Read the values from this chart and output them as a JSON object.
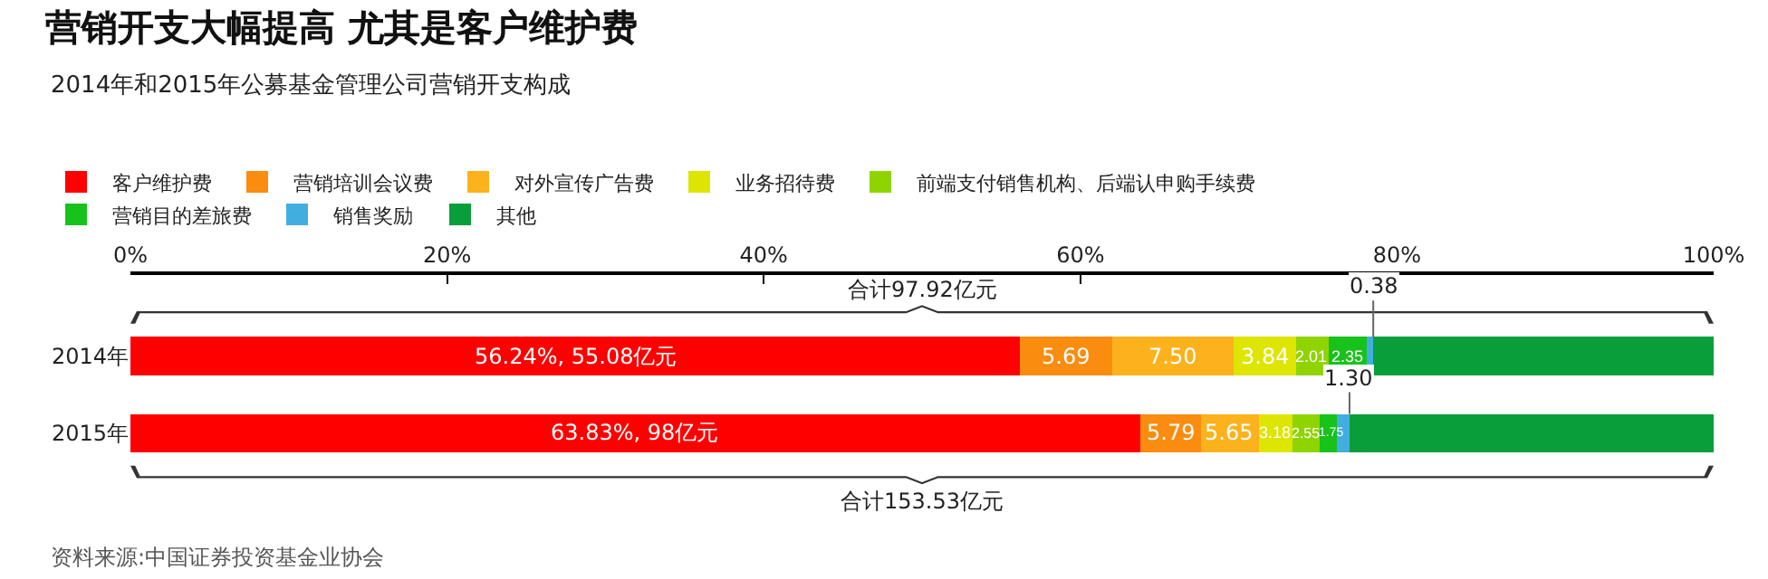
{
  "chart_data": {
    "type": "bar",
    "orientation": "horizontal",
    "stacked": true,
    "title": "营销开支大幅提高 尤其是客户维护费",
    "subtitle": "2014年和2015年公募基金管理公司营销开支构成",
    "categories": [
      "2014年",
      "2015年"
    ],
    "series": [
      {
        "name": "客户维护费",
        "color": "#ff0000",
        "values": [
          56.2,
          63.8
        ]
      },
      {
        "name": "营销培训会议费",
        "color": "#fa8c0f",
        "values": [
          5.8,
          3.8
        ]
      },
      {
        "name": "对外宣传广告费",
        "color": "#fbb21c",
        "values": [
          7.7,
          3.7
        ]
      },
      {
        "name": "业务招待费",
        "color": "#dde500",
        "values": [
          3.9,
          2.1
        ]
      },
      {
        "name": "前端支付销售机构、后端认申购手续费",
        "color": "#8fd400",
        "values": [
          2.1,
          1.7
        ]
      },
      {
        "name": "营销目的差旅费",
        "color": "#17c21b",
        "values": [
          2.4,
          1.1
        ]
      },
      {
        "name": "销售奖励",
        "color": "#42aee0",
        "values": [
          0.4,
          0.8
        ]
      },
      {
        "name": "其他",
        "color": "#0a9e3a",
        "values": [
          21.5,
          23.0
        ]
      }
    ],
    "xlim": [
      0,
      100
    ],
    "xticks": [
      {
        "value": 0,
        "label": "0%"
      },
      {
        "value": 20,
        "label": "20%"
      },
      {
        "value": 40,
        "label": "40%"
      },
      {
        "value": 60,
        "label": "60%"
      },
      {
        "value": 80,
        "label": "80%"
      },
      {
        "value": 100,
        "label": "100%"
      }
    ],
    "totals": [
      "合计97.92亿元",
      "合计153.53亿元"
    ],
    "annotations": [
      "资料来源:中国证券投资基金业协会",
      "56.24%, 55.08亿元",
      "5.69",
      "7.50",
      "3.84",
      "2.01",
      "2.35",
      "63.83%, 98亿元",
      "5.79",
      "5.65",
      "3.18",
      "2.55",
      "1.75",
      {
        "text": "0.38",
        "x": 78.5,
        "y": "2014年"
      },
      {
        "text": "1.30",
        "x": 77.0,
        "y": "2015年"
      }
    ],
    "legend": "top",
    "grid": false
  }
}
